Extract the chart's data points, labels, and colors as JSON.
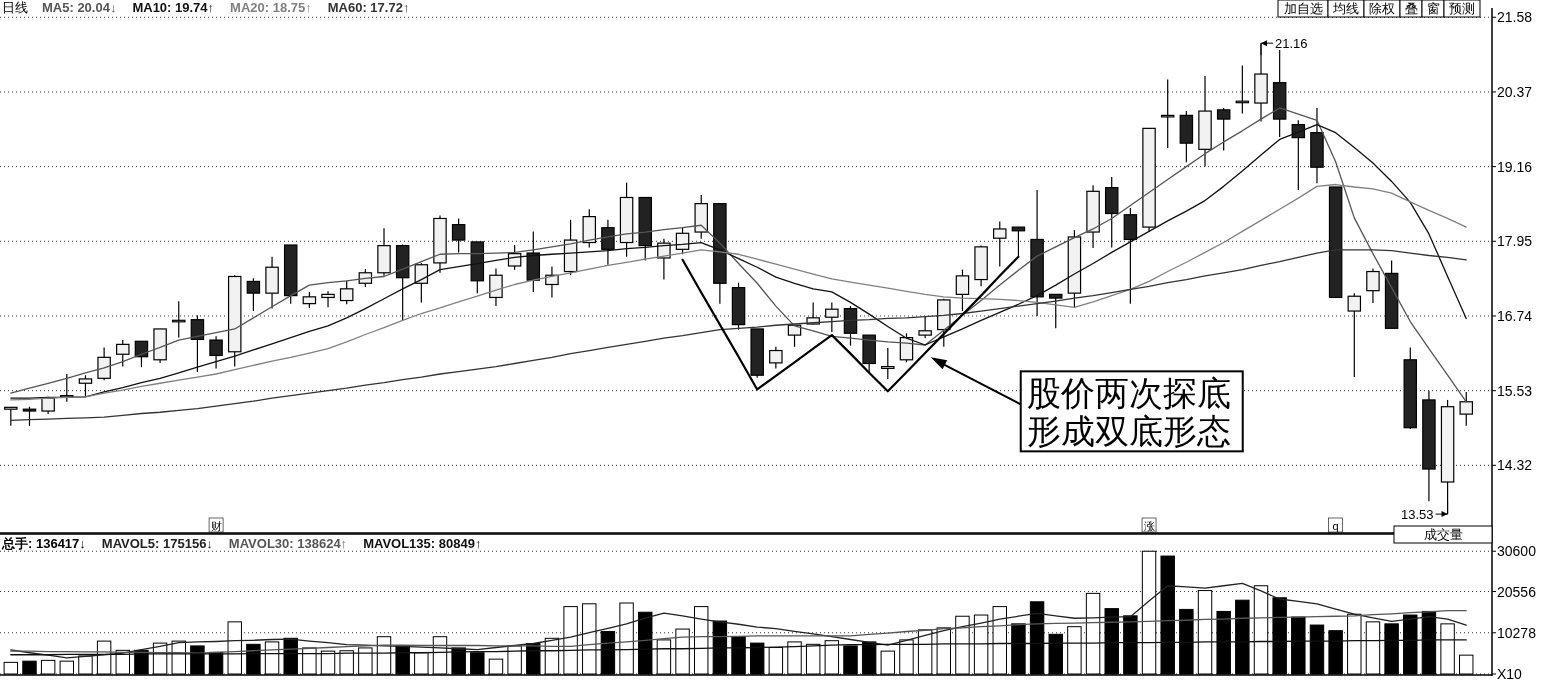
{
  "chart_data": [
    {
      "type": "candlestick",
      "title": "日线",
      "grid": "y",
      "tick_labels": "y",
      "categories": [
        null,
        null,
        null,
        null,
        null,
        null,
        null,
        null,
        null,
        null,
        null,
        null,
        null,
        null,
        null,
        null,
        null,
        null,
        null,
        null,
        null,
        null,
        null,
        null,
        null,
        null,
        null,
        null,
        null,
        null,
        null,
        null,
        null,
        null,
        null,
        null,
        null,
        null,
        null,
        null,
        null,
        null,
        null,
        null,
        null,
        null,
        null,
        null,
        null,
        null,
        null,
        null,
        null,
        null,
        null,
        null,
        null,
        null,
        null,
        null,
        null,
        null,
        null,
        null,
        null,
        null,
        null,
        null,
        null,
        null,
        null,
        null,
        null,
        null,
        null,
        null,
        null,
        null,
        null
      ],
      "ylim": [
        13.24,
        21.73
      ],
      "yticks": [
        21.58,
        20.37,
        19.16,
        17.95,
        16.74,
        15.53,
        14.32
      ],
      "ohlc": [
        [
          15.23,
          15.26,
          14.96,
          15.26
        ],
        [
          15.23,
          15.27,
          14.96,
          15.2
        ],
        [
          15.2,
          15.43,
          15.15,
          15.41
        ],
        [
          15.44,
          15.8,
          15.35,
          15.45
        ],
        [
          15.65,
          15.78,
          15.43,
          15.72
        ],
        [
          15.73,
          16.23,
          15.7,
          16.07
        ],
        [
          16.12,
          16.35,
          15.92,
          16.28
        ],
        [
          16.33,
          16.33,
          15.91,
          16.08
        ],
        [
          16.03,
          16.53,
          15.98,
          16.53
        ],
        [
          16.66,
          16.98,
          16.39,
          16.67
        ],
        [
          16.68,
          16.75,
          15.83,
          16.36
        ],
        [
          16.35,
          16.41,
          15.89,
          16.1
        ],
        [
          16.16,
          17.4,
          15.92,
          17.38
        ],
        [
          17.3,
          17.35,
          16.82,
          17.11
        ],
        [
          17.11,
          17.7,
          16.86,
          17.53
        ],
        [
          17.89,
          17.89,
          16.94,
          17.07
        ],
        [
          16.94,
          17.13,
          16.87,
          17.05
        ],
        [
          17.04,
          17.14,
          16.88,
          17.09
        ],
        [
          16.99,
          17.31,
          16.93,
          17.18
        ],
        [
          17.27,
          17.5,
          17.21,
          17.44
        ],
        [
          17.44,
          18.16,
          17.39,
          17.88
        ],
        [
          17.88,
          17.9,
          16.66,
          17.36
        ],
        [
          17.27,
          17.6,
          16.96,
          17.57
        ],
        [
          17.6,
          18.37,
          17.44,
          18.32
        ],
        [
          18.22,
          18.32,
          17.77,
          17.97
        ],
        [
          17.94,
          17.94,
          17.11,
          17.31
        ],
        [
          17.04,
          17.51,
          16.9,
          17.4
        ],
        [
          17.55,
          17.89,
          17.49,
          17.75
        ],
        [
          17.76,
          18.11,
          17.13,
          17.32
        ],
        [
          17.25,
          17.54,
          17.04,
          17.4
        ],
        [
          17.46,
          18.3,
          17.4,
          17.97
        ],
        [
          17.93,
          18.47,
          17.85,
          18.35
        ],
        [
          18.17,
          18.3,
          17.57,
          17.82
        ],
        [
          17.93,
          18.9,
          17.7,
          18.66
        ],
        [
          18.66,
          18.66,
          17.64,
          17.88
        ],
        [
          17.68,
          17.99,
          17.33,
          17.92
        ],
        [
          17.82,
          18.18,
          17.74,
          18.08
        ],
        [
          18.1,
          18.7,
          17.99,
          18.56
        ],
        [
          18.56,
          18.56,
          16.94,
          17.27
        ],
        [
          17.2,
          17.28,
          16.52,
          16.6
        ],
        [
          16.53,
          16.53,
          15.74,
          15.78
        ],
        [
          15.98,
          16.24,
          15.89,
          16.18
        ],
        [
          16.43,
          16.6,
          16.24,
          16.59
        ],
        [
          16.61,
          16.96,
          16.6,
          16.71
        ],
        [
          16.72,
          16.96,
          16.48,
          16.85
        ],
        [
          16.86,
          16.9,
          16.26,
          16.46
        ],
        [
          16.43,
          16.43,
          15.82,
          15.97
        ],
        [
          15.89,
          16.22,
          15.72,
          15.92
        ],
        [
          16.03,
          16.46,
          15.99,
          16.39
        ],
        [
          16.43,
          16.74,
          16.38,
          16.5
        ],
        [
          16.52,
          17.02,
          16.24,
          17.0
        ],
        [
          17.09,
          17.49,
          16.82,
          17.39
        ],
        [
          17.33,
          17.88,
          17.22,
          17.86
        ],
        [
          18.0,
          18.27,
          17.54,
          18.15
        ],
        [
          18.18,
          18.18,
          17.71,
          18.12
        ],
        [
          17.98,
          18.78,
          16.74,
          17.05
        ],
        [
          17.09,
          17.09,
          16.54,
          17.03
        ],
        [
          17.11,
          18.13,
          16.88,
          18.02
        ],
        [
          18.1,
          18.86,
          17.84,
          18.76
        ],
        [
          18.82,
          18.99,
          17.85,
          18.4
        ],
        [
          18.38,
          18.49,
          16.94,
          17.98
        ],
        [
          18.18,
          19.78,
          18.1,
          19.78
        ],
        [
          19.98,
          20.57,
          19.46,
          19.99
        ],
        [
          19.99,
          20.06,
          19.23,
          19.54
        ],
        [
          19.44,
          20.63,
          19.16,
          20.06
        ],
        [
          20.08,
          20.11,
          19.42,
          19.93
        ],
        [
          20.21,
          20.8,
          20.02,
          20.22
        ],
        [
          20.19,
          21.16,
          19.89,
          20.66
        ],
        [
          20.52,
          21.05,
          19.64,
          19.93
        ],
        [
          19.84,
          19.91,
          18.78,
          19.63
        ],
        [
          19.71,
          20.11,
          18.89,
          19.15
        ],
        [
          18.83,
          18.83,
          17.04,
          17.04
        ],
        [
          16.82,
          17.11,
          15.75,
          17.06
        ],
        [
          17.15,
          17.51,
          16.95,
          17.46
        ],
        [
          17.43,
          17.64,
          16.54,
          16.54
        ],
        [
          16.03,
          16.23,
          14.91,
          14.93
        ],
        [
          15.38,
          15.53,
          13.74,
          14.26
        ],
        [
          14.05,
          15.38,
          13.53,
          15.27
        ],
        [
          15.15,
          15.51,
          14.96,
          15.35
        ]
      ],
      "series": [
        {
          "name": "MA5: 20.04↓",
          "type": "line",
          "color": "#555555",
          "values": [
            15.49,
            15.57,
            15.65,
            15.73,
            15.82,
            15.9,
            16.0,
            16.12,
            16.23,
            16.35,
            16.41,
            16.47,
            16.53,
            16.71,
            16.89,
            17.07,
            17.24,
            17.28,
            17.31,
            17.35,
            17.38,
            17.5,
            17.62,
            17.74,
            17.75,
            17.75,
            17.76,
            17.77,
            17.81,
            17.86,
            17.91,
            17.97,
            18.02,
            18.07,
            18.1,
            18.14,
            18.17,
            18.21,
            17.92,
            17.59,
            17.27,
            16.9,
            16.58,
            16.5,
            16.41,
            16.38,
            16.35,
            16.32,
            16.3,
            16.27,
            16.51,
            16.75,
            16.99,
            17.24,
            17.48,
            17.71,
            17.86,
            18.01,
            18.15,
            18.32,
            18.53,
            18.74,
            18.95,
            19.16,
            19.37,
            19.56,
            19.74,
            19.93,
            20.11,
            20.01,
            19.91,
            19.24,
            18.33,
            17.75,
            17.2,
            16.65,
            16.21,
            15.78,
            15.35
          ]
        },
        {
          "name": "MA10: 19.74↑",
          "type": "line",
          "color": "#111111",
          "values": [
            15.41,
            15.41,
            15.42,
            15.42,
            15.43,
            15.51,
            15.58,
            15.66,
            15.73,
            15.82,
            15.91,
            16.0,
            16.09,
            16.19,
            16.29,
            16.39,
            16.49,
            16.58,
            16.71,
            16.86,
            17.02,
            17.18,
            17.33,
            17.49,
            17.54,
            17.59,
            17.64,
            17.69,
            17.72,
            17.74,
            17.76,
            17.78,
            17.8,
            17.83,
            17.85,
            17.88,
            17.9,
            17.93,
            17.81,
            17.67,
            17.53,
            17.37,
            17.27,
            17.18,
            17.13,
            16.96,
            16.77,
            16.57,
            16.38,
            16.27,
            16.4,
            16.53,
            16.67,
            16.8,
            16.93,
            17.07,
            17.24,
            17.42,
            17.59,
            17.77,
            17.94,
            18.11,
            18.28,
            18.44,
            18.61,
            18.84,
            19.09,
            19.35,
            19.6,
            19.72,
            19.84,
            19.71,
            19.47,
            19.22,
            18.92,
            18.58,
            18.07,
            17.38,
            16.7
          ]
        },
        {
          "name": "MA20: 18.75↑",
          "type": "line",
          "color": "#808080",
          "values": [
            15.38,
            15.39,
            15.41,
            15.42,
            15.43,
            15.49,
            15.54,
            15.6,
            15.65,
            15.7,
            15.75,
            15.8,
            15.87,
            15.94,
            16.01,
            16.07,
            16.14,
            16.21,
            16.32,
            16.44,
            16.55,
            16.67,
            16.78,
            16.87,
            16.97,
            17.06,
            17.16,
            17.25,
            17.32,
            17.38,
            17.44,
            17.5,
            17.56,
            17.61,
            17.66,
            17.71,
            17.76,
            17.81,
            17.78,
            17.74,
            17.66,
            17.58,
            17.5,
            17.42,
            17.34,
            17.29,
            17.24,
            17.19,
            17.14,
            17.09,
            17.05,
            17.03,
            17.02,
            17.01,
            16.99,
            16.96,
            16.92,
            16.88,
            16.97,
            17.07,
            17.17,
            17.3,
            17.46,
            17.61,
            17.77,
            17.93,
            18.11,
            18.29,
            18.47,
            18.65,
            18.84,
            18.87,
            18.83,
            18.8,
            18.73,
            18.59,
            18.45,
            18.32,
            18.18
          ]
        },
        {
          "name": "MA60: 17.72↑",
          "type": "line",
          "color": "#333333",
          "values": [
            15.05,
            15.06,
            15.07,
            15.08,
            15.09,
            15.1,
            15.13,
            15.16,
            15.18,
            15.21,
            15.24,
            15.28,
            15.32,
            15.36,
            15.41,
            15.45,
            15.49,
            15.53,
            15.57,
            15.62,
            15.66,
            15.71,
            15.75,
            15.8,
            15.84,
            15.88,
            15.92,
            15.97,
            16.02,
            16.07,
            16.13,
            16.18,
            16.23,
            16.28,
            16.33,
            16.38,
            16.42,
            16.47,
            16.52,
            16.54,
            16.56,
            16.59,
            16.61,
            16.63,
            16.65,
            16.67,
            16.68,
            16.7,
            16.71,
            16.73,
            16.75,
            16.78,
            16.82,
            16.86,
            16.9,
            16.94,
            16.98,
            17.03,
            17.07,
            17.12,
            17.17,
            17.22,
            17.28,
            17.33,
            17.39,
            17.44,
            17.49,
            17.56,
            17.62,
            17.69,
            17.76,
            17.81,
            17.81,
            17.81,
            17.8,
            17.76,
            17.72,
            17.69,
            17.65
          ]
        },
        {
          "type": "line",
          "color": "#000000",
          "values": [
            null,
            null,
            null,
            null,
            null,
            null,
            null,
            null,
            null,
            null,
            null,
            null,
            null,
            null,
            null,
            null,
            null,
            null,
            null,
            null,
            null,
            null,
            null,
            null,
            null,
            null,
            null,
            null,
            null,
            null,
            null,
            null,
            null,
            null,
            null,
            null,
            17.65,
            17.12,
            16.6,
            16.08,
            15.55,
            15.77,
            15.99,
            16.21,
            16.43,
            16.13,
            15.82,
            15.52,
            15.83,
            16.14,
            16.45,
            16.76,
            17.07,
            17.39,
            17.7,
            null,
            null,
            null,
            null,
            null,
            null,
            null,
            null,
            null,
            null,
            null,
            null,
            null,
            null,
            null,
            null,
            null,
            null,
            null,
            null,
            null,
            null,
            null,
            null
          ]
        }
      ],
      "annotations": [
        "21.16",
        "13.53",
        "股价两次探底形成双底形态",
        "财",
        "涨",
        "q",
        "加自选",
        "均线",
        "除权",
        "叠",
        "窗",
        "预测"
      ]
    },
    {
      "type": "bar",
      "grid": "y",
      "tick_labels": "y",
      "categories": [
        null,
        null,
        null,
        null,
        null,
        null,
        null,
        null,
        null,
        null,
        null,
        null,
        null,
        null,
        null,
        null,
        null,
        null,
        null,
        null,
        null,
        null,
        null,
        null,
        null,
        null,
        null,
        null,
        null,
        null,
        null,
        null,
        null,
        null,
        null,
        null,
        null,
        null,
        null,
        null,
        null,
        null,
        null,
        null,
        null,
        null,
        null,
        null,
        null,
        null,
        null,
        null,
        null,
        null,
        null,
        null,
        null,
        null,
        null,
        null,
        null,
        null,
        null,
        null,
        null,
        null,
        null,
        null,
        null,
        null,
        null,
        null,
        null,
        null,
        null,
        null,
        null,
        null,
        null
      ],
      "ylim": [
        0,
        34900
      ],
      "yticks": [
        30600,
        20556,
        10278,
        {
          "value": 0,
          "label": "X10"
        }
      ],
      "series": [
        {
          "name": "总手: 136417↓",
          "type": "bar",
          "color": "#000000",
          "values": [
            2900,
            3200,
            3400,
            3200,
            4500,
            8200,
            5900,
            5900,
            7700,
            8200,
            7000,
            5400,
            13000,
            7400,
            8000,
            8900,
            6500,
            5700,
            5800,
            6500,
            9300,
            7000,
            5300,
            9300,
            6500,
            5300,
            3700,
            7000,
            7600,
            8900,
            16800,
            17500,
            10600,
            17700,
            15400,
            8500,
            11200,
            16800,
            13200,
            9300,
            7700,
            6600,
            8000,
            7400,
            8300,
            7000,
            8000,
            5700,
            8500,
            11000,
            11500,
            14400,
            14700,
            16800,
            12500,
            18000,
            9900,
            11800,
            20100,
            16300,
            14500,
            30600,
            29400,
            16100,
            20800,
            15600,
            18400,
            22000,
            19000,
            14200,
            12200,
            10800,
            14900,
            13000,
            12500,
            14700,
            15600,
            12500,
            4700
          ],
          "colors": [
            "#ffffff",
            "#000000",
            "#ffffff",
            "#ffffff",
            "#ffffff",
            "#ffffff",
            "#ffffff",
            "#000000",
            "#ffffff",
            "#ffffff",
            "#000000",
            "#000000",
            "#ffffff",
            "#000000",
            "#ffffff",
            "#000000",
            "#ffffff",
            "#ffffff",
            "#ffffff",
            "#ffffff",
            "#ffffff",
            "#000000",
            "#ffffff",
            "#ffffff",
            "#000000",
            "#000000",
            "#ffffff",
            "#ffffff",
            "#000000",
            "#ffffff",
            "#ffffff",
            "#ffffff",
            "#000000",
            "#ffffff",
            "#000000",
            "#ffffff",
            "#ffffff",
            "#ffffff",
            "#000000",
            "#000000",
            "#000000",
            "#ffffff",
            "#ffffff",
            "#ffffff",
            "#ffffff",
            "#000000",
            "#000000",
            "#ffffff",
            "#ffffff",
            "#ffffff",
            "#ffffff",
            "#ffffff",
            "#ffffff",
            "#ffffff",
            "#000000",
            "#000000",
            "#000000",
            "#ffffff",
            "#ffffff",
            "#000000",
            "#000000",
            "#ffffff",
            "#000000",
            "#000000",
            "#ffffff",
            "#000000",
            "#000000",
            "#ffffff",
            "#000000",
            "#000000",
            "#000000",
            "#000000",
            "#ffffff",
            "#ffffff",
            "#000000",
            "#000000",
            "#000000",
            "#ffffff",
            "#ffffff"
          ]
        },
        {
          "name": "MAVOL5: 175156↓",
          "type": "line",
          "color": "#222222",
          "values": [
            6000,
            5300,
            4700,
            4000,
            4400,
            4800,
            5200,
            6100,
            6900,
            7800,
            8000,
            8100,
            8300,
            8400,
            8600,
            8700,
            8200,
            7800,
            7300,
            7200,
            7000,
            6900,
            6700,
            6500,
            6300,
            6100,
            6600,
            7100,
            7600,
            8400,
            9200,
            10300,
            11400,
            12500,
            13900,
            15200,
            14500,
            13700,
            13000,
            12400,
            11700,
            11300,
            10600,
            10000,
            9300,
            8600,
            7900,
            7200,
            8400,
            9600,
            10800,
            11800,
            12700,
            13700,
            14400,
            15100,
            14500,
            13900,
            14000,
            14200,
            14300,
            18200,
            22000,
            21700,
            21400,
            22000,
            22600,
            20700,
            18700,
            18100,
            17500,
            16200,
            14900,
            14000,
            13100,
            13700,
            14300,
            13700,
            12200
          ]
        },
        {
          "name": "MAVOL30: 138624↑",
          "type": "line",
          "color": "#555555",
          "values": [
            5700,
            5700,
            5600,
            5600,
            5500,
            5500,
            5400,
            5400,
            5300,
            5300,
            5200,
            5400,
            5600,
            5800,
            6000,
            6200,
            6400,
            6600,
            6800,
            7000,
            7200,
            7200,
            7100,
            7100,
            7100,
            7100,
            7000,
            7000,
            7000,
            6900,
            6900,
            7300,
            7700,
            8000,
            8400,
            8800,
            9200,
            9300,
            9300,
            9400,
            9500,
            9500,
            9500,
            9500,
            9500,
            9500,
            9900,
            10200,
            10600,
            10900,
            11300,
            11500,
            11800,
            12000,
            12300,
            12500,
            12600,
            12700,
            12800,
            12900,
            13000,
            13100,
            13300,
            13400,
            13600,
            13700,
            13900,
            14000,
            14100,
            14200,
            14300,
            14400,
            14500,
            14800,
            15000,
            15300,
            15500,
            15800,
            15800
          ]
        },
        {
          "name": "MAVOL135: 80849↑",
          "type": "line",
          "color": "#111111",
          "values": [
            4800,
            4800,
            4800,
            4900,
            4900,
            4900,
            4900,
            5000,
            5000,
            5000,
            5000,
            5000,
            5000,
            5100,
            5100,
            5100,
            5100,
            5100,
            5200,
            5200,
            5200,
            5300,
            5300,
            5400,
            5500,
            5600,
            5600,
            5700,
            5800,
            5800,
            5900,
            6000,
            6000,
            6100,
            6200,
            6300,
            6300,
            6400,
            6500,
            6500,
            6600,
            6700,
            6800,
            7000,
            7200,
            7300,
            7300,
            7400,
            7400,
            7400,
            7500,
            7500,
            7500,
            7600,
            7600,
            7600,
            7700,
            7700,
            7700,
            7800,
            7800,
            7800,
            7900,
            7900,
            8000,
            8000,
            8000,
            8100,
            8100,
            8200,
            8200,
            8200,
            8300,
            8300,
            8400,
            8400,
            8500,
            8500,
            8500
          ]
        }
      ],
      "annotations": [
        "成交量"
      ]
    }
  ]
}
